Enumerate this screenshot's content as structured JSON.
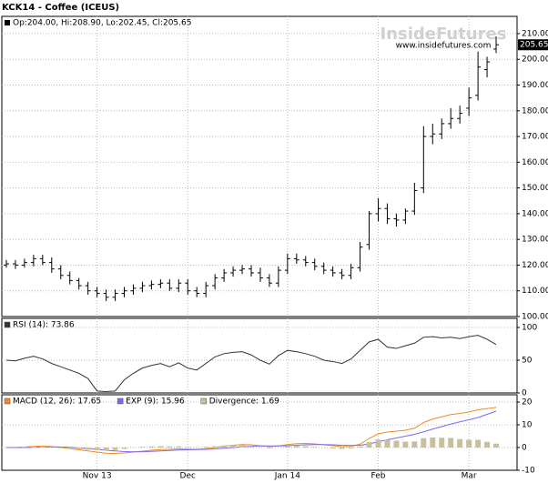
{
  "title": "KCK14 - Coffee (ICEUS)",
  "chart_data": [
    {
      "type": "ohlc",
      "legend": "Op:204.00, Hi:208.90, Lo:202.45, Cl:205.65",
      "price_tag": "205.65",
      "watermark": [
        "InsideFutures",
        "www.insidefutures.com"
      ],
      "color": "#000000",
      "ylim": [
        100,
        216.7
      ],
      "yticks": [
        {
          "value": 100,
          "label": "100.00"
        },
        {
          "value": 110,
          "label": "110.00"
        },
        {
          "value": 120,
          "label": "120.00"
        },
        {
          "value": 130,
          "label": "130.00"
        },
        {
          "value": 140,
          "label": "140.00"
        },
        {
          "value": 150,
          "label": "150.00"
        },
        {
          "value": 160,
          "label": "160.00"
        },
        {
          "value": 170,
          "label": "170.00"
        },
        {
          "value": 180,
          "label": "180.00"
        },
        {
          "value": 190,
          "label": "190.00"
        },
        {
          "value": 200,
          "label": "200.00"
        },
        {
          "value": 210,
          "label": "210.00"
        }
      ],
      "open": [
        120,
        120.5,
        120,
        121,
        122.5,
        121,
        118.5,
        116,
        114,
        112,
        110,
        109,
        107.5,
        109,
        110,
        111,
        112,
        112.5,
        113,
        111,
        113,
        110,
        109,
        112,
        115,
        117,
        118,
        118.5,
        117,
        115,
        113,
        118,
        122.5,
        122,
        121,
        119.5,
        118,
        117,
        116,
        119,
        128,
        140,
        142,
        138,
        137.5,
        141,
        150,
        170,
        171,
        175,
        177,
        181,
        186,
        196,
        204
      ],
      "high": [
        122,
        122,
        122.5,
        124,
        124,
        123,
        120,
        117.5,
        115,
        113.5,
        111.5,
        110.5,
        110.5,
        111.5,
        112.5,
        113.5,
        114,
        114.5,
        114.5,
        114.5,
        114.5,
        111.5,
        113.5,
        116.5,
        118.5,
        119.5,
        120,
        120,
        119,
        116.5,
        119.5,
        124.5,
        124.5,
        123.5,
        122.5,
        121,
        119.5,
        118.5,
        120.5,
        129,
        141,
        146,
        144,
        140,
        142,
        152,
        174,
        175,
        177,
        181,
        182,
        189,
        203,
        201,
        208.9
      ],
      "low": [
        119,
        118.5,
        119,
        119.5,
        120,
        117,
        114.5,
        112.5,
        110.5,
        108.5,
        107.5,
        106,
        106,
        107.5,
        108.5,
        109.5,
        110.5,
        111,
        110,
        109.5,
        108.5,
        107.5,
        107.5,
        110.5,
        113.5,
        115.5,
        116.5,
        115.5,
        113.5,
        111.5,
        111.5,
        116.5,
        120.5,
        119.5,
        118,
        116.5,
        115.5,
        114.5,
        114.5,
        117.5,
        126,
        137,
        136,
        135,
        136,
        139.5,
        148,
        167,
        169,
        173,
        175,
        178,
        184,
        193,
        202.45
      ],
      "close": [
        120.5,
        120,
        121,
        122.5,
        121,
        118.5,
        116,
        114,
        112,
        110,
        109,
        107.5,
        109,
        110,
        111,
        112,
        112.5,
        113,
        111,
        113,
        110,
        109,
        112,
        115,
        117,
        118,
        118.5,
        117,
        115,
        113,
        118,
        122.5,
        122,
        121,
        119.5,
        118,
        117,
        116,
        119,
        127,
        140,
        142,
        138,
        137.5,
        141,
        149,
        170,
        171,
        175,
        177,
        179,
        185,
        197,
        199,
        205.65
      ]
    },
    {
      "type": "line",
      "ylim": [
        0,
        113.9
      ],
      "yticks": [
        0,
        50,
        100
      ],
      "series": [
        {
          "name": "RSI (14): 73.86",
          "color": "#333333",
          "values": [
            50,
            49,
            53,
            56,
            52,
            45,
            40,
            35,
            30,
            22,
            3,
            2,
            3,
            20,
            30,
            38,
            42,
            45,
            40,
            46,
            38,
            35,
            45,
            55,
            60,
            62,
            63,
            58,
            50,
            44,
            57,
            65,
            63,
            60,
            56,
            50,
            48,
            45,
            52,
            65,
            78,
            82,
            70,
            68,
            72,
            76,
            85,
            86,
            84,
            85,
            83,
            86,
            88,
            82,
            73.86
          ]
        }
      ]
    },
    {
      "type": "macd",
      "ylim": [
        -10,
        23.2
      ],
      "yticks": [
        -10,
        0,
        10,
        20
      ],
      "categories": [
        null,
        null,
        null,
        null,
        null,
        null,
        null,
        null,
        null,
        null,
        "Nov 13",
        null,
        null,
        null,
        null,
        null,
        null,
        null,
        null,
        null,
        "Dec",
        null,
        null,
        null,
        null,
        null,
        null,
        null,
        null,
        null,
        null,
        "Jan 14",
        null,
        null,
        null,
        null,
        null,
        null,
        null,
        null,
        null,
        "Feb",
        null,
        null,
        null,
        null,
        null,
        null,
        null,
        null,
        null,
        "Mar",
        null,
        null,
        null
      ],
      "series": [
        {
          "name": "MACD (12, 26): 17.65",
          "color": "#f08a24",
          "kind": "line",
          "values": [
            0,
            0,
            0.2,
            0.5,
            0.6,
            0.4,
            0,
            -0.5,
            -1,
            -1.5,
            -2,
            -2.5,
            -2.6,
            -2.4,
            -2,
            -1.6,
            -1.2,
            -0.9,
            -0.8,
            -0.6,
            -0.7,
            -0.8,
            -0.5,
            0,
            0.6,
            1,
            1.3,
            1.2,
            0.8,
            0.4,
            0.7,
            1.3,
            1.7,
            1.8,
            1.6,
            1.2,
            0.8,
            0.4,
            0.5,
            1.5,
            4,
            6,
            6.8,
            7.2,
            7.6,
            8.5,
            11,
            12.5,
            13.5,
            14.5,
            15,
            15.6,
            16.6,
            17.1,
            17.65
          ]
        },
        {
          "name": "EXP (9): 15.96",
          "color": "#7b68ee",
          "kind": "line",
          "values": [
            0,
            0,
            0,
            0.1,
            0.2,
            0.3,
            0.2,
            0.1,
            -0.2,
            -0.5,
            -0.8,
            -1.2,
            -1.5,
            -1.8,
            -1.9,
            -1.9,
            -1.7,
            -1.5,
            -1.3,
            -1.1,
            -1,
            -0.9,
            -0.8,
            -0.6,
            -0.3,
            0,
            0.3,
            0.6,
            0.7,
            0.7,
            0.7,
            0.8,
            1,
            1.2,
            1.3,
            1.3,
            1.2,
            1,
            0.9,
            1,
            1.6,
            2.5,
            3.4,
            4.2,
            5,
            5.8,
            6.9,
            8.1,
            9.2,
            10.3,
            11.3,
            12.2,
            13.2,
            14.6,
            15.96
          ]
        },
        {
          "name": "Divergence: 1.69",
          "color": "#c8c09a",
          "kind": "bar",
          "values": [
            0,
            0,
            0.2,
            0.4,
            0.4,
            0.1,
            -0.2,
            -0.6,
            -0.8,
            -1,
            -1.2,
            -1.3,
            -1.1,
            -0.6,
            -0.1,
            0.3,
            0.5,
            0.6,
            0.5,
            0.5,
            0.3,
            0.1,
            0.3,
            0.6,
            0.9,
            1,
            1,
            0.6,
            0.1,
            -0.3,
            0,
            0.5,
            0.7,
            0.6,
            0.3,
            -0.1,
            -0.4,
            -0.6,
            -0.4,
            0.5,
            2.4,
            3.5,
            3.4,
            3,
            2.6,
            2.7,
            4.1,
            4.4,
            4.3,
            4.2,
            3.7,
            3.4,
            3.4,
            2.5,
            1.69
          ]
        }
      ]
    }
  ]
}
